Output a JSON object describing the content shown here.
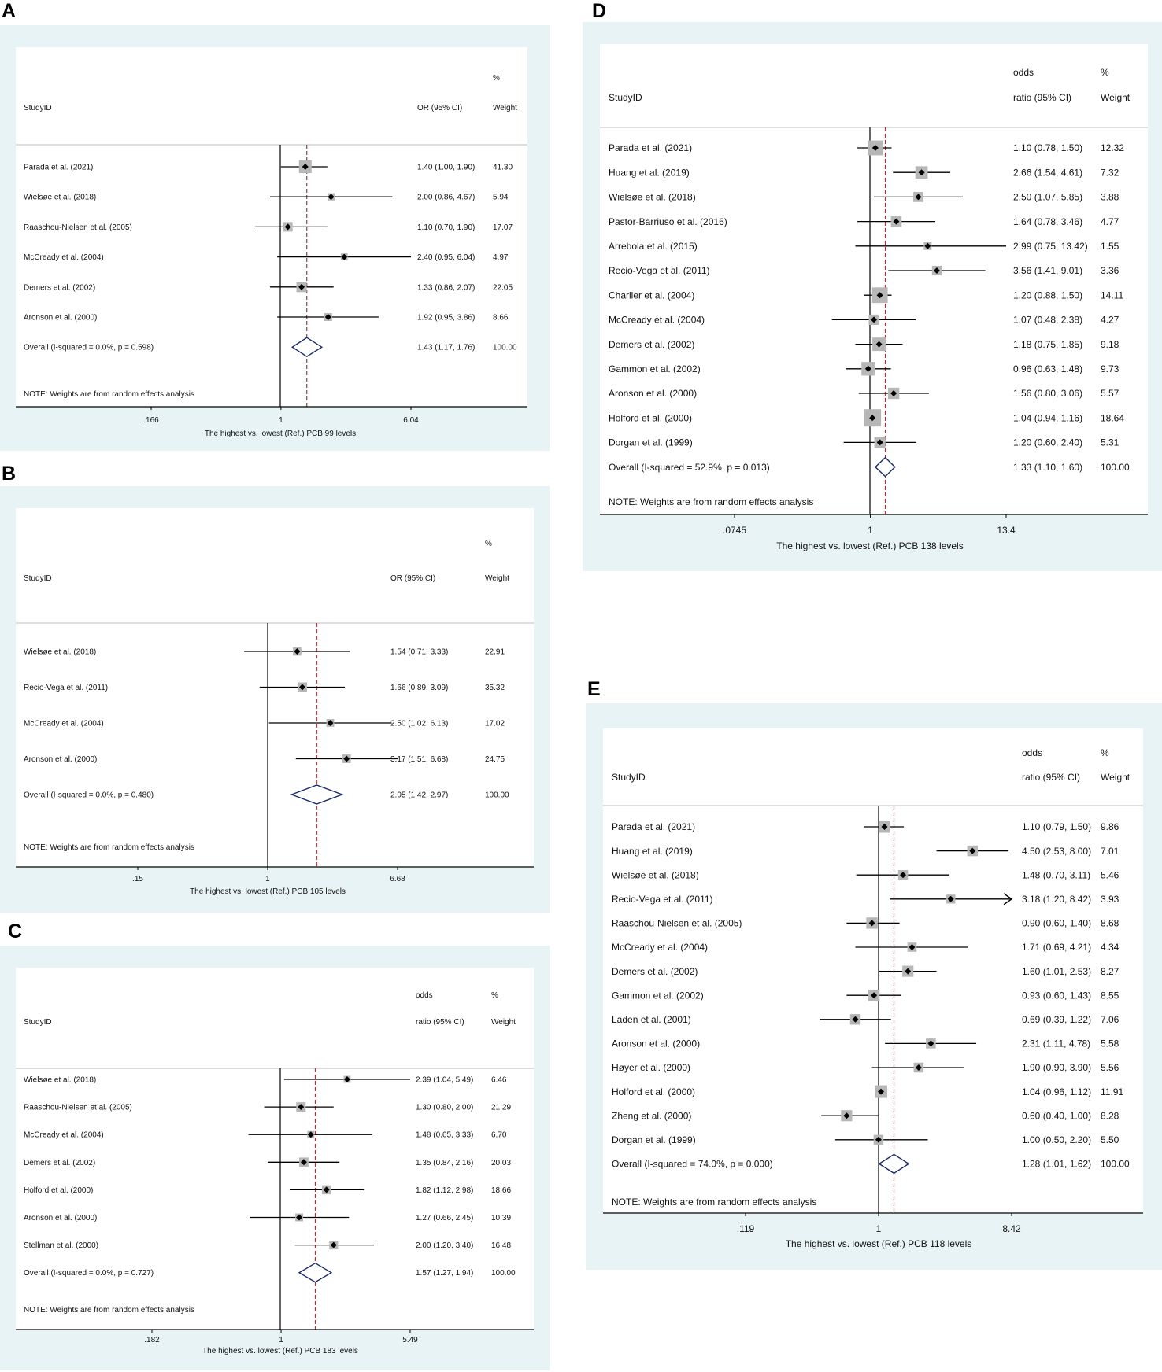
{
  "panel_letters": [
    "A",
    "B",
    "C",
    "D",
    "E"
  ],
  "chart_data": [
    {
      "panel": "A",
      "type": "forest",
      "header": {
        "study_col": "StudyID",
        "est_col": [
          "",
          "OR (95% CI)"
        ],
        "w_col": [
          "%",
          "Weight"
        ]
      },
      "xlabel": "The highest vs. lowest (Ref.) PCB 99 levels",
      "ticks": [
        {
          "value": 0.166,
          "label": ".166"
        },
        {
          "value": 1,
          "label": "1"
        },
        {
          "value": 6.04,
          "label": "6.04"
        }
      ],
      "xlim": [
        0.166,
        6.04
      ],
      "pooled": 1.43,
      "note": "NOTE: Weights are from random effects analysis",
      "studies": [
        {
          "name": "Parada et al. (2021)",
          "or": 1.4,
          "lo": 1.0,
          "hi": 1.9,
          "ci": "1.40 (1.00, 1.90)",
          "weight": "41.30"
        },
        {
          "name": "Wielsøe et al. (2018)",
          "or": 2.0,
          "lo": 0.86,
          "hi": 4.67,
          "ci": "2.00 (0.86, 4.67)",
          "weight": "5.94"
        },
        {
          "name": "Raaschou-Nielsen et al. (2005)",
          "or": 1.1,
          "lo": 0.7,
          "hi": 1.9,
          "ci": "1.10 (0.70, 1.90)",
          "weight": "17.07"
        },
        {
          "name": "McCready et al. (2004)",
          "or": 2.4,
          "lo": 0.95,
          "hi": 6.04,
          "ci": "2.40 (0.95, 6.04)",
          "weight": "4.97"
        },
        {
          "name": "Demers et al. (2002)",
          "or": 1.33,
          "lo": 0.86,
          "hi": 2.07,
          "ci": "1.33 (0.86, 2.07)",
          "weight": "22.05"
        },
        {
          "name": "Aronson et al. (2000)",
          "or": 1.92,
          "lo": 0.95,
          "hi": 3.86,
          "ci": "1.92 (0.95, 3.86)",
          "weight": "8.66"
        }
      ],
      "overall": {
        "name": "Overall  (I-squared = 0.0%, p = 0.598)",
        "or": 1.43,
        "lo": 1.17,
        "hi": 1.76,
        "ci": "1.43 (1.17, 1.76)",
        "weight": "100.00"
      }
    },
    {
      "panel": "B",
      "type": "forest",
      "header": {
        "study_col": "StudyID",
        "est_col": [
          "",
          "OR (95% CI)"
        ],
        "w_col": [
          "%",
          "Weight"
        ]
      },
      "xlabel": "The highest vs. lowest (Ref.) PCB 105 levels",
      "ticks": [
        {
          "value": 0.15,
          "label": ".15"
        },
        {
          "value": 1,
          "label": "1"
        },
        {
          "value": 6.68,
          "label": "6.68"
        }
      ],
      "xlim": [
        0.15,
        6.68
      ],
      "pooled": 2.05,
      "note": "NOTE: Weights are from random effects analysis",
      "studies": [
        {
          "name": "Wielsøe et al. (2018)",
          "or": 1.54,
          "lo": 0.71,
          "hi": 3.33,
          "ci": "1.54 (0.71, 3.33)",
          "weight": "22.91"
        },
        {
          "name": "Recio-Vega et al. (2011)",
          "or": 1.66,
          "lo": 0.89,
          "hi": 3.09,
          "ci": "1.66 (0.89, 3.09)",
          "weight": "35.32"
        },
        {
          "name": "McCready et al. (2004)",
          "or": 2.5,
          "lo": 1.02,
          "hi": 6.13,
          "ci": "2.50 (1.02, 6.13)",
          "weight": "17.02"
        },
        {
          "name": "Aronson et al. (2000)",
          "or": 3.17,
          "lo": 1.51,
          "hi": 6.68,
          "ci": "3.17 (1.51, 6.68)",
          "weight": "24.75"
        }
      ],
      "overall": {
        "name": "Overall  (I-squared = 0.0%, p = 0.480)",
        "or": 2.05,
        "lo": 1.42,
        "hi": 2.97,
        "ci": "2.05 (1.42, 2.97)",
        "weight": "100.00"
      }
    },
    {
      "panel": "C",
      "type": "forest",
      "header": {
        "study_col": "StudyID",
        "est_col": [
          "odds",
          "ratio (95% CI)"
        ],
        "w_col": [
          "%",
          "Weight"
        ]
      },
      "xlabel": "The highest vs. lowest (Ref.) PCB 183 levels",
      "ticks": [
        {
          "value": 0.182,
          "label": ".182"
        },
        {
          "value": 1,
          "label": "1"
        },
        {
          "value": 5.49,
          "label": "5.49"
        }
      ],
      "xlim": [
        0.182,
        5.49
      ],
      "pooled": 1.57,
      "note": "NOTE: Weights are from random effects analysis",
      "studies": [
        {
          "name": "Wielsøe et al. (2018)",
          "or": 2.39,
          "lo": 1.04,
          "hi": 5.49,
          "ci": "2.39 (1.04, 5.49)",
          "weight": "6.46"
        },
        {
          "name": "Raaschou-Nielsen et al. (2005)",
          "or": 1.3,
          "lo": 0.8,
          "hi": 2.0,
          "ci": "1.30 (0.80, 2.00)",
          "weight": "21.29"
        },
        {
          "name": "McCready et al. (2004)",
          "or": 1.48,
          "lo": 0.65,
          "hi": 3.33,
          "ci": "1.48 (0.65, 3.33)",
          "weight": "6.70"
        },
        {
          "name": "Demers et al. (2002)",
          "or": 1.35,
          "lo": 0.84,
          "hi": 2.16,
          "ci": "1.35 (0.84, 2.16)",
          "weight": "20.03"
        },
        {
          "name": "Holford et al. (2000)",
          "or": 1.82,
          "lo": 1.12,
          "hi": 2.98,
          "ci": "1.82 (1.12, 2.98)",
          "weight": "18.66"
        },
        {
          "name": "Aronson et al. (2000)",
          "or": 1.27,
          "lo": 0.66,
          "hi": 2.45,
          "ci": "1.27 (0.66, 2.45)",
          "weight": "10.39"
        },
        {
          "name": "Stellman et al. (2000)",
          "or": 2.0,
          "lo": 1.2,
          "hi": 3.4,
          "ci": "2.00 (1.20, 3.40)",
          "weight": "16.48"
        }
      ],
      "overall": {
        "name": "Overall  (I-squared = 0.0%, p = 0.727)",
        "or": 1.57,
        "lo": 1.27,
        "hi": 1.94,
        "ci": "1.57 (1.27, 1.94)",
        "weight": "100.00"
      }
    },
    {
      "panel": "D",
      "type": "forest",
      "header": {
        "study_col": "StudyID",
        "est_col": [
          "odds",
          "ratio (95% CI)"
        ],
        "w_col": [
          "%",
          "Weight"
        ]
      },
      "xlabel": "The highest vs. lowest (Ref.) PCB 138 levels",
      "ticks": [
        {
          "value": 0.0745,
          "label": ".0745"
        },
        {
          "value": 1,
          "label": "1"
        },
        {
          "value": 13.4,
          "label": "13.4"
        }
      ],
      "xlim": [
        0.0745,
        13.4
      ],
      "pooled": 1.33,
      "note": "NOTE: Weights are from random effects analysis",
      "studies": [
        {
          "name": "Parada et al. (2021)",
          "or": 1.1,
          "lo": 0.78,
          "hi": 1.5,
          "ci": "1.10 (0.78, 1.50)",
          "weight": "12.32"
        },
        {
          "name": "Huang et al. (2019)",
          "or": 2.66,
          "lo": 1.54,
          "hi": 4.61,
          "ci": "2.66 (1.54, 4.61)",
          "weight": "7.32"
        },
        {
          "name": "Wielsøe et al. (2018)",
          "or": 2.5,
          "lo": 1.07,
          "hi": 5.85,
          "ci": "2.50 (1.07, 5.85)",
          "weight": "3.88"
        },
        {
          "name": "Pastor-Barriuso et al. (2016)",
          "or": 1.64,
          "lo": 0.78,
          "hi": 3.46,
          "ci": "1.64 (0.78, 3.46)",
          "weight": "4.77"
        },
        {
          "name": "Arrebola et al. (2015)",
          "or": 2.99,
          "lo": 0.75,
          "hi": 13.42,
          "ci": "2.99 (0.75, 13.42)",
          "weight": "1.55"
        },
        {
          "name": "Recio-Vega et al. (2011)",
          "or": 3.56,
          "lo": 1.41,
          "hi": 9.01,
          "ci": "3.56 (1.41, 9.01)",
          "weight": "3.36"
        },
        {
          "name": "Charlier et al. (2004)",
          "or": 1.2,
          "lo": 0.88,
          "hi": 1.5,
          "ci": "1.20 (0.88, 1.50)",
          "weight": "14.11"
        },
        {
          "name": "McCready et al. (2004)",
          "or": 1.07,
          "lo": 0.48,
          "hi": 2.38,
          "ci": "1.07 (0.48, 2.38)",
          "weight": "4.27"
        },
        {
          "name": "Demers et al. (2002)",
          "or": 1.18,
          "lo": 0.75,
          "hi": 1.85,
          "ci": "1.18 (0.75, 1.85)",
          "weight": "9.18"
        },
        {
          "name": "Gammon et al. (2002)",
          "or": 0.96,
          "lo": 0.63,
          "hi": 1.48,
          "ci": "0.96 (0.63, 1.48)",
          "weight": "9.73"
        },
        {
          "name": "Aronson et al. (2000)",
          "or": 1.56,
          "lo": 0.8,
          "hi": 3.06,
          "ci": "1.56 (0.80, 3.06)",
          "weight": "5.57"
        },
        {
          "name": "Holford et al. (2000)",
          "or": 1.04,
          "lo": 0.94,
          "hi": 1.16,
          "ci": "1.04 (0.94, 1.16)",
          "weight": "18.64"
        },
        {
          "name": "Dorgan et al. (1999)",
          "or": 1.2,
          "lo": 0.6,
          "hi": 2.4,
          "ci": "1.20 (0.60, 2.40)",
          "weight": "5.31"
        }
      ],
      "overall": {
        "name": "Overall  (I-squared = 52.9%, p = 0.013)",
        "or": 1.33,
        "lo": 1.1,
        "hi": 1.6,
        "ci": "1.33 (1.10, 1.60)",
        "weight": "100.00"
      }
    },
    {
      "panel": "E",
      "type": "forest",
      "header": {
        "study_col": "StudyID",
        "est_col": [
          "odds",
          "ratio (95% CI)"
        ],
        "w_col": [
          "%",
          "Weight"
        ]
      },
      "xlabel": "The highest vs. lowest (Ref.) PCB 118 levels",
      "ticks": [
        {
          "value": 0.119,
          "label": ".119"
        },
        {
          "value": 1,
          "label": "1"
        },
        {
          "value": 8.42,
          "label": "8.42"
        }
      ],
      "xlim": [
        0.119,
        8.42
      ],
      "pooled": 1.28,
      "note": "NOTE: Weights are from random effects analysis",
      "studies": [
        {
          "name": "Parada et al. (2021)",
          "or": 1.1,
          "lo": 0.79,
          "hi": 1.5,
          "ci": "1.10 (0.79, 1.50)",
          "weight": "9.86"
        },
        {
          "name": "Huang et al. (2019)",
          "or": 4.5,
          "lo": 2.53,
          "hi": 8.0,
          "ci": "4.50 (2.53, 8.00)",
          "weight": "7.01"
        },
        {
          "name": "Wielsøe et al. (2018)",
          "or": 1.48,
          "lo": 0.7,
          "hi": 3.11,
          "ci": "1.48 (0.70, 3.11)",
          "weight": "5.46"
        },
        {
          "name": "Recio-Vega et al. (2011)",
          "or": 3.18,
          "lo": 1.2,
          "hi": 8.42,
          "ci": "3.18 (1.20, 8.42)",
          "weight": "3.93",
          "arrow": true
        },
        {
          "name": "Raaschou-Nielsen et al. (2005)",
          "or": 0.9,
          "lo": 0.6,
          "hi": 1.4,
          "ci": "0.90 (0.60, 1.40)",
          "weight": "8.68"
        },
        {
          "name": "McCready et al. (2004)",
          "or": 1.71,
          "lo": 0.69,
          "hi": 4.21,
          "ci": "1.71 (0.69, 4.21)",
          "weight": "4.34"
        },
        {
          "name": "Demers et al. (2002)",
          "or": 1.6,
          "lo": 1.01,
          "hi": 2.53,
          "ci": "1.60 (1.01, 2.53)",
          "weight": "8.27"
        },
        {
          "name": "Gammon et al. (2002)",
          "or": 0.93,
          "lo": 0.6,
          "hi": 1.43,
          "ci": "0.93 (0.60, 1.43)",
          "weight": "8.55"
        },
        {
          "name": "Laden et al. (2001)",
          "or": 0.69,
          "lo": 0.39,
          "hi": 1.22,
          "ci": "0.69 (0.39, 1.22)",
          "weight": "7.06"
        },
        {
          "name": "Aronson et al. (2000)",
          "or": 2.31,
          "lo": 1.11,
          "hi": 4.78,
          "ci": "2.31 (1.11, 4.78)",
          "weight": "5.58"
        },
        {
          "name": "Høyer et al. (2000)",
          "or": 1.9,
          "lo": 0.9,
          "hi": 3.9,
          "ci": "1.90 (0.90, 3.90)",
          "weight": "5.56"
        },
        {
          "name": "Holford et al. (2000)",
          "or": 1.04,
          "lo": 0.96,
          "hi": 1.12,
          "ci": "1.04 (0.96, 1.12)",
          "weight": "11.91"
        },
        {
          "name": "Zheng et al. (2000)",
          "or": 0.6,
          "lo": 0.4,
          "hi": 1.0,
          "ci": "0.60 (0.40, 1.00)",
          "weight": "8.28"
        },
        {
          "name": "Dorgan et al. (1999)",
          "or": 1.0,
          "lo": 0.5,
          "hi": 2.2,
          "ci": "1.00 (0.50, 2.20)",
          "weight": "5.50"
        }
      ],
      "overall": {
        "name": "Overall  (I-squared = 74.0%, p = 0.000)",
        "or": 1.28,
        "lo": 1.01,
        "hi": 1.62,
        "ci": "1.28 (1.01, 1.62)",
        "weight": "100.00"
      }
    }
  ]
}
